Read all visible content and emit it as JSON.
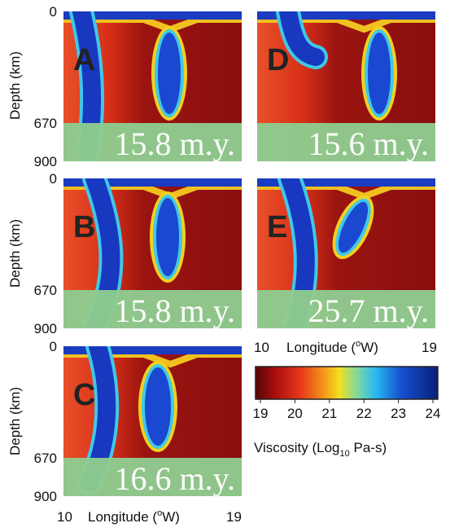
{
  "panels": [
    {
      "label": "A",
      "time": "15.8 m.y."
    },
    {
      "label": "D",
      "time": "15.6 m.y."
    },
    {
      "label": "B",
      "time": "15.8 m.y."
    },
    {
      "label": "E",
      "time": "25.7 m.y."
    },
    {
      "label": "C",
      "time": "16.6 m.y."
    }
  ],
  "depth_axis": {
    "label": "Depth (km)",
    "ticks": [
      0,
      670,
      900
    ]
  },
  "longitude_axis": {
    "start": 10,
    "end": 19,
    "label_prefix": "Longitude (",
    "label_sup": "o",
    "label_suffix": "W)"
  },
  "colorbar": {
    "ticks": [
      19,
      20,
      21,
      22,
      23,
      24
    ],
    "label_prefix": "Viscosity (Log",
    "label_sub": "10",
    "label_suffix": " Pa-s)"
  }
}
